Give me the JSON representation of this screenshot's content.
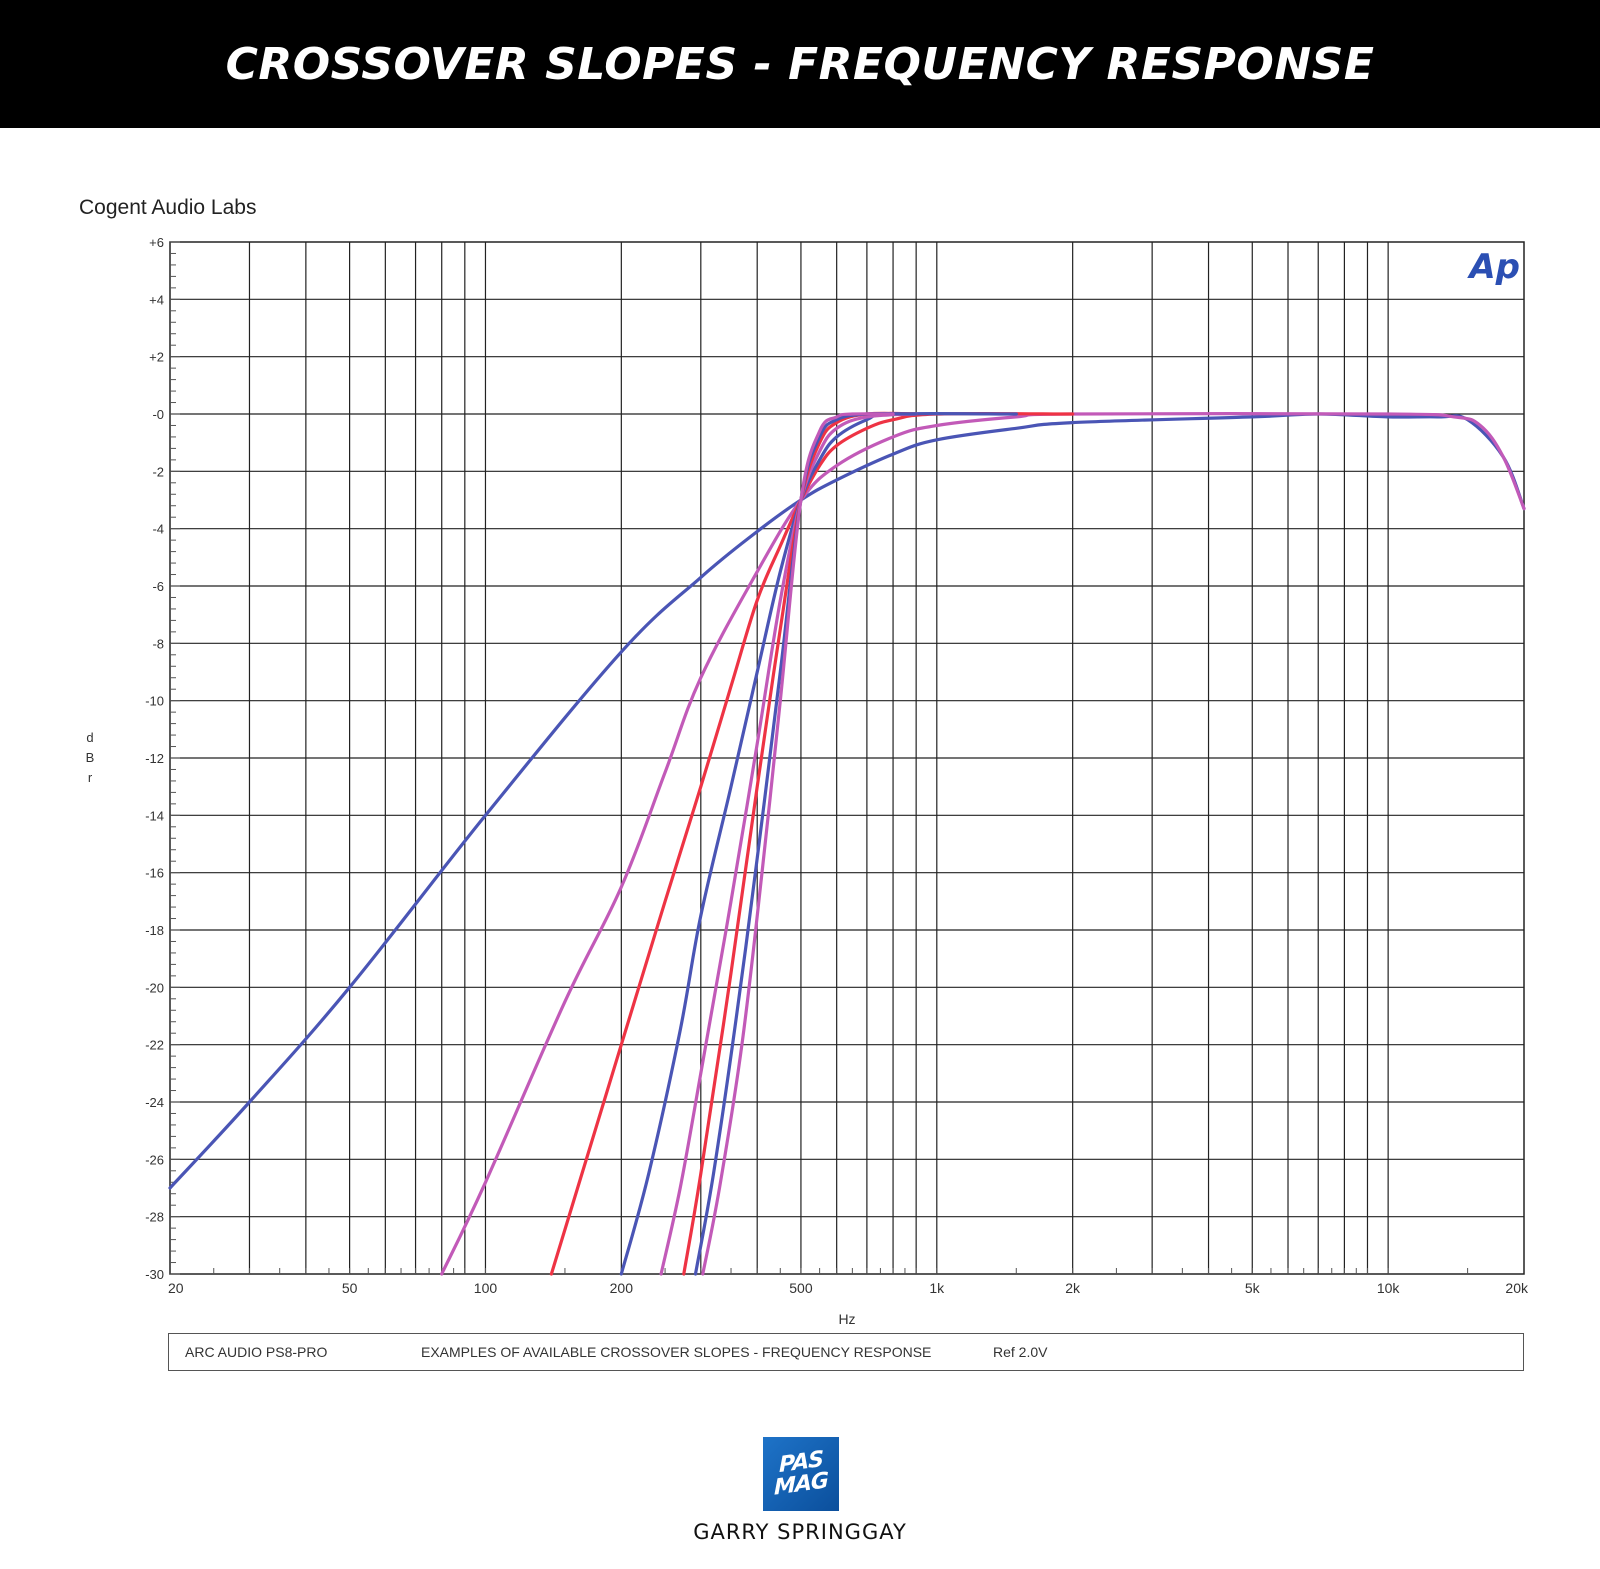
{
  "header": {
    "title": "CROSSOVER SLOPES - FREQUENCY RESPONSE"
  },
  "chart_brand": "Cogent Audio Labs",
  "ap_logo": "Ap",
  "legend": {
    "device": "ARC AUDIO  PS8-PRO",
    "description": "EXAMPLES OF AVAILABLE CROSSOVER SLOPES -   FREQUENCY RESPONSE",
    "ref": "Ref 2.0V"
  },
  "footer": {
    "logo_line1": "PAS",
    "logo_line2": "MAG",
    "credit": "GARRY SPRINGGAY"
  },
  "colors": {
    "blue": "#4a55b5",
    "red": "#ee3344",
    "magenta": "#c25ab8",
    "grid": "#222222",
    "banner": "#000000",
    "logo": "#1565c0"
  },
  "chart_data": {
    "type": "line",
    "xlabel": "Hz",
    "ylabel": "dBr",
    "xscale": "log",
    "xlim": [
      20,
      20000
    ],
    "ylim": [
      -30,
      6
    ],
    "xticks": [
      {
        "v": 20,
        "label": "20"
      },
      {
        "v": 50,
        "label": "50"
      },
      {
        "v": 100,
        "label": "100"
      },
      {
        "v": 200,
        "label": "200"
      },
      {
        "v": 500,
        "label": "500"
      },
      {
        "v": 1000,
        "label": "1k"
      },
      {
        "v": 2000,
        "label": "2k"
      },
      {
        "v": 5000,
        "label": "5k"
      },
      {
        "v": 10000,
        "label": "10k"
      },
      {
        "v": 20000,
        "label": "20k"
      }
    ],
    "yticks": [
      {
        "v": 6,
        "label": "+6"
      },
      {
        "v": 4,
        "label": "+4"
      },
      {
        "v": 2,
        "label": "+2"
      },
      {
        "v": 0,
        "label": "-0"
      },
      {
        "v": -2,
        "label": "-2"
      },
      {
        "v": -4,
        "label": "-4"
      },
      {
        "v": -6,
        "label": "-6"
      },
      {
        "v": -8,
        "label": "-8"
      },
      {
        "v": -10,
        "label": "-10"
      },
      {
        "v": -12,
        "label": "-12"
      },
      {
        "v": -14,
        "label": "-14"
      },
      {
        "v": -16,
        "label": "-16"
      },
      {
        "v": -18,
        "label": "-18"
      },
      {
        "v": -20,
        "label": "-20"
      },
      {
        "v": -22,
        "label": "-22"
      },
      {
        "v": -24,
        "label": "-24"
      },
      {
        "v": -26,
        "label": "-26"
      },
      {
        "v": -28,
        "label": "-28"
      },
      {
        "v": -30,
        "label": "-30"
      }
    ],
    "grid": true,
    "series": [
      {
        "color": "blue",
        "points": [
          [
            20,
            -27
          ],
          [
            30,
            -24
          ],
          [
            50,
            -20
          ],
          [
            100,
            -14
          ],
          [
            200,
            -8.3
          ],
          [
            300,
            -5.7
          ],
          [
            400,
            -4.1
          ],
          [
            500,
            -3
          ],
          [
            600,
            -2.3
          ],
          [
            800,
            -1.4
          ],
          [
            1000,
            -0.9
          ],
          [
            1500,
            -0.5
          ],
          [
            2000,
            -0.3
          ],
          [
            5000,
            -0.1
          ],
          [
            7000,
            0
          ],
          [
            10000,
            -0.1
          ],
          [
            13000,
            -0.1
          ],
          [
            15000,
            -0.2
          ],
          [
            18000,
            -1.5
          ],
          [
            20000,
            -3.3
          ]
        ]
      },
      {
        "color": "magenta",
        "points": [
          [
            80,
            -30
          ],
          [
            100,
            -26.8
          ],
          [
            150,
            -20.5
          ],
          [
            200,
            -16.5
          ],
          [
            250,
            -12.5
          ],
          [
            300,
            -9.2
          ],
          [
            400,
            -5.5
          ],
          [
            500,
            -3
          ],
          [
            600,
            -1.8
          ],
          [
            800,
            -0.8
          ],
          [
            1000,
            -0.4
          ],
          [
            1500,
            -0.1
          ],
          [
            2000,
            0
          ],
          [
            10000,
            0
          ],
          [
            14000,
            -0.1
          ],
          [
            16000,
            -0.4
          ],
          [
            18000,
            -1.5
          ],
          [
            20000,
            -3.3
          ]
        ]
      },
      {
        "color": "red",
        "points": [
          [
            140,
            -30
          ],
          [
            160,
            -27
          ],
          [
            200,
            -22
          ],
          [
            250,
            -17
          ],
          [
            300,
            -13
          ],
          [
            350,
            -9.5
          ],
          [
            400,
            -6.5
          ],
          [
            450,
            -4.6
          ],
          [
            500,
            -3
          ],
          [
            550,
            -1.8
          ],
          [
            600,
            -1.1
          ],
          [
            700,
            -0.5
          ],
          [
            800,
            -0.2
          ],
          [
            1000,
            0
          ],
          [
            2000,
            0
          ]
        ]
      },
      {
        "color": "blue",
        "points": [
          [
            200,
            -30
          ],
          [
            230,
            -26.5
          ],
          [
            270,
            -21.5
          ],
          [
            300,
            -17.5
          ],
          [
            350,
            -13
          ],
          [
            400,
            -9
          ],
          [
            450,
            -5.5
          ],
          [
            500,
            -3
          ],
          [
            550,
            -1.6
          ],
          [
            600,
            -0.8
          ],
          [
            700,
            -0.2
          ],
          [
            800,
            0
          ],
          [
            1500,
            0
          ]
        ]
      },
      {
        "color": "magenta",
        "points": [
          [
            245,
            -30
          ],
          [
            270,
            -27
          ],
          [
            300,
            -23
          ],
          [
            350,
            -17
          ],
          [
            400,
            -11.5
          ],
          [
            450,
            -6.5
          ],
          [
            500,
            -3
          ],
          [
            550,
            -1.3
          ],
          [
            600,
            -0.5
          ],
          [
            700,
            -0.1
          ],
          [
            900,
            0
          ]
        ]
      },
      {
        "color": "red",
        "points": [
          [
            275,
            -30
          ],
          [
            300,
            -26.5
          ],
          [
            350,
            -19.5
          ],
          [
            400,
            -13
          ],
          [
            450,
            -7.5
          ],
          [
            500,
            -3
          ],
          [
            550,
            -1
          ],
          [
            600,
            -0.3
          ],
          [
            700,
            0
          ],
          [
            900,
            0
          ]
        ]
      },
      {
        "color": "blue",
        "points": [
          [
            292,
            -30
          ],
          [
            320,
            -26.5
          ],
          [
            360,
            -21
          ],
          [
            400,
            -15.5
          ],
          [
            450,
            -9
          ],
          [
            500,
            -3
          ],
          [
            550,
            -0.8
          ],
          [
            600,
            -0.2
          ],
          [
            700,
            0
          ],
          [
            900,
            0
          ]
        ]
      },
      {
        "color": "magenta",
        "points": [
          [
            303,
            -30
          ],
          [
            330,
            -27
          ],
          [
            370,
            -22
          ],
          [
            410,
            -16
          ],
          [
            450,
            -10
          ],
          [
            500,
            -3
          ],
          [
            550,
            -0.6
          ],
          [
            600,
            -0.1
          ],
          [
            650,
            0
          ],
          [
            800,
            0
          ]
        ]
      }
    ]
  }
}
